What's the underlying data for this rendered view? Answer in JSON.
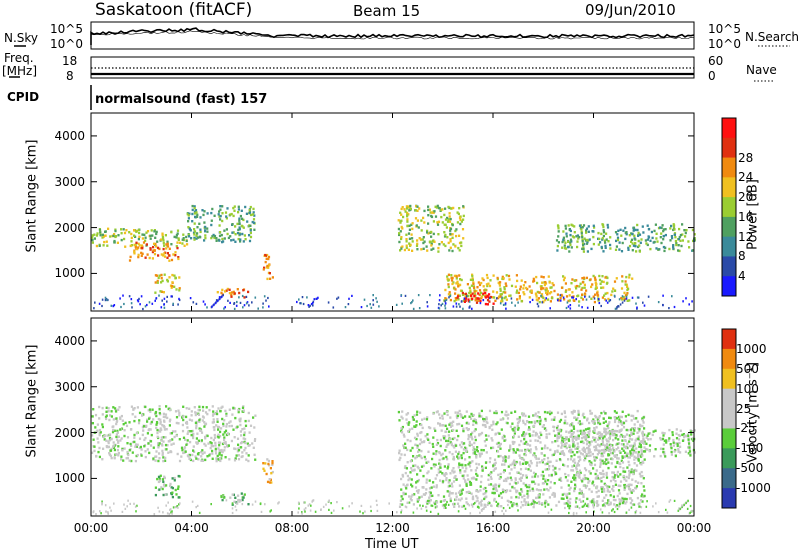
{
  "header": {
    "title": "Saskatoon (fitACF)",
    "beam": "Beam 15",
    "date": "09/Jun/2010"
  },
  "panels": {
    "nsky_label": "N.Sky",
    "nsearch_label": "N.Search",
    "noise_ticks_left": [
      "10^5",
      "10^0"
    ],
    "noise_ticks_right": [
      "10^5",
      "10^0"
    ],
    "freq_label": "Freq.",
    "freq_unit": "[MHz]",
    "freq_ticks": [
      "18",
      "8"
    ],
    "nave_label": "Nave",
    "nave_ticks": [
      "60",
      "0"
    ],
    "cpid_label": "CPID",
    "cpid_value": "normalsound (fast) 157"
  },
  "chart_data": [
    {
      "type": "heatmap",
      "title": "",
      "xlabel": "Time UT",
      "ylabel": "Slant Range [km]",
      "x_ticks": [
        "00:00",
        "04:00",
        "08:00",
        "12:00",
        "16:00",
        "20:00",
        "00:00"
      ],
      "y_ticks": [
        "1000",
        "2000",
        "3000",
        "4000"
      ],
      "xlim": [
        0,
        24
      ],
      "ylim": [
        180,
        4500
      ],
      "colorbar": {
        "label": "Power [dB]",
        "ticks": [
          "4",
          "8",
          "12",
          "16",
          "20",
          "24",
          "28"
        ],
        "colors": [
          "#1a1aff",
          "#2a4aa8",
          "#3a8a9a",
          "#4fa060",
          "#9acd32",
          "#f0c020",
          "#f08a10",
          "#e03010",
          "#ff1010"
        ]
      },
      "features": [
        {
          "t0": 0.0,
          "t1": 3.8,
          "r0": 1600,
          "r1": 2000,
          "level": 4
        },
        {
          "t0": 1.5,
          "t1": 3.5,
          "r0": 1300,
          "r1": 1700,
          "level": 6
        },
        {
          "t0": 3.8,
          "t1": 6.5,
          "r0": 1700,
          "r1": 2500,
          "level": 3
        },
        {
          "t0": 2.5,
          "t1": 3.5,
          "r0": 600,
          "r1": 1000,
          "level": 5
        },
        {
          "t0": 5.0,
          "t1": 6.3,
          "r0": 500,
          "r1": 700,
          "level": 6
        },
        {
          "t0": 6.8,
          "t1": 7.2,
          "r0": 900,
          "r1": 1500,
          "level": 6
        },
        {
          "t0": 12.2,
          "t1": 14.8,
          "r0": 1500,
          "r1": 2500,
          "level": 4
        },
        {
          "t0": 14.0,
          "t1": 21.5,
          "r0": 400,
          "r1": 1000,
          "level": 5
        },
        {
          "t0": 14.5,
          "t1": 16.0,
          "r0": 350,
          "r1": 600,
          "level": 8
        },
        {
          "t0": 18.5,
          "t1": 24.0,
          "r0": 1500,
          "r1": 2100,
          "level": 3
        }
      ]
    },
    {
      "type": "heatmap",
      "title": "",
      "xlabel": "Time UT",
      "ylabel": "Slant Range [km]",
      "x_ticks": [
        "00:00",
        "04:00",
        "08:00",
        "12:00",
        "16:00",
        "20:00",
        "00:00"
      ],
      "y_ticks": [
        "1000",
        "2000",
        "3000",
        "4000"
      ],
      "xlim": [
        0,
        24
      ],
      "ylim": [
        180,
        4500
      ],
      "colorbar": {
        "label": "Velocity [m s⁻¹]",
        "ticks": [
          "1000",
          "500",
          "100",
          "25",
          "-25",
          "-100",
          "-500",
          "-1000"
        ],
        "colors": [
          "#2a3ab0",
          "#3a6a8a",
          "#3a9a5a",
          "#5acd3a",
          "#c8c8c8",
          "#c8c8c8",
          "#f0c020",
          "#f08a10",
          "#e03010"
        ]
      },
      "features": [
        {
          "t0": 0.0,
          "t1": 6.5,
          "r0": 1400,
          "r1": 2600,
          "level": 4
        },
        {
          "t0": 2.5,
          "t1": 3.5,
          "r0": 600,
          "r1": 1100,
          "level": 3
        },
        {
          "t0": 5.0,
          "t1": 6.3,
          "r0": 450,
          "r1": 700,
          "level": 3
        },
        {
          "t0": 6.8,
          "t1": 7.2,
          "r0": 900,
          "r1": 1500,
          "level": 6
        },
        {
          "t0": 12.2,
          "t1": 22.0,
          "r0": 400,
          "r1": 2500,
          "level": 4
        },
        {
          "t0": 18.5,
          "t1": 24.0,
          "r0": 1500,
          "r1": 2100,
          "level": 4
        }
      ]
    }
  ]
}
